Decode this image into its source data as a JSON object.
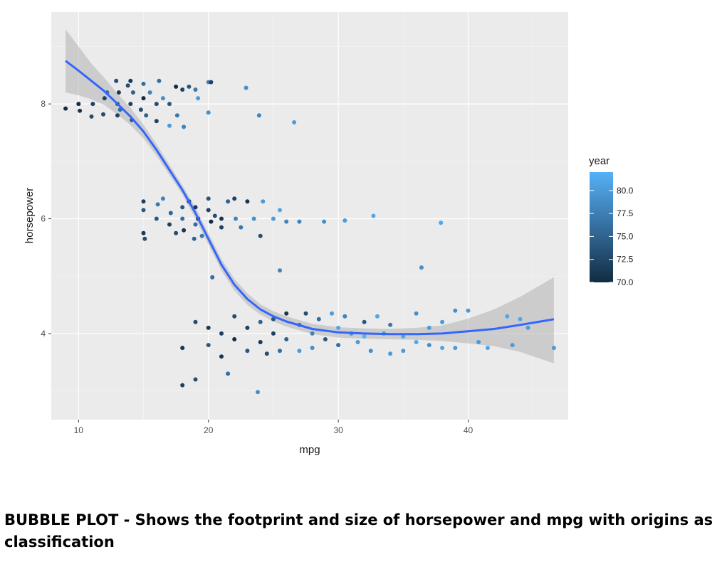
{
  "caption": "BUBBLE PLOT - Shows the footprint and size of horsepower and mpg with origins as classification",
  "chart_data": {
    "type": "scatter",
    "title": "",
    "xlabel": "mpg",
    "ylabel": "horsepower",
    "xlim": [
      7.9,
      47.7
    ],
    "ylim": [
      2.5,
      9.6
    ],
    "x_ticks": [
      10,
      20,
      30,
      40
    ],
    "y_ticks": [
      4,
      6,
      8
    ],
    "grid": true,
    "colors": {
      "panel": "#ebebeb",
      "grid": "#ffffff",
      "smooth_line": "#3366ff",
      "ribbon": "#b3b3b3",
      "low": "#132b43",
      "high": "#56b1f7"
    },
    "legend": {
      "title": "year",
      "placement": "right",
      "range": [
        70,
        82
      ],
      "labels": [
        "80.0",
        "77.5",
        "75.0",
        "72.5",
        "70.0"
      ],
      "values": [
        80,
        77.5,
        75,
        72.5,
        70
      ]
    },
    "smooth": {
      "x": [
        9,
        10,
        11,
        12,
        13,
        14,
        15,
        16,
        17,
        18,
        19,
        20,
        21,
        22,
        23,
        24,
        25,
        26,
        28,
        30,
        32,
        34,
        36,
        38,
        40,
        42,
        44,
        46.6
      ],
      "y": [
        8.75,
        8.58,
        8.4,
        8.22,
        8.0,
        7.78,
        7.52,
        7.2,
        6.85,
        6.5,
        6.1,
        5.65,
        5.2,
        4.85,
        4.6,
        4.42,
        4.3,
        4.21,
        4.08,
        4.02,
        4.0,
        3.99,
        3.99,
        4.0,
        4.04,
        4.08,
        4.15,
        4.25
      ],
      "lower": [
        8.2,
        8.15,
        8.08,
        7.98,
        7.82,
        7.63,
        7.4,
        7.1,
        6.76,
        6.42,
        6.0,
        5.55,
        5.1,
        4.75,
        4.5,
        4.33,
        4.21,
        4.12,
        3.99,
        3.93,
        3.91,
        3.9,
        3.89,
        3.87,
        3.83,
        3.78,
        3.68,
        3.48
      ],
      "upper": [
        9.3,
        9.0,
        8.7,
        8.45,
        8.18,
        7.93,
        7.64,
        7.3,
        6.94,
        6.58,
        6.2,
        5.75,
        5.3,
        4.95,
        4.7,
        4.51,
        4.39,
        4.3,
        4.17,
        4.11,
        4.09,
        4.08,
        4.1,
        4.14,
        4.26,
        4.42,
        4.64,
        4.98
      ]
    },
    "points": [
      {
        "x": 9.0,
        "y": 7.92,
        "year": 70
      },
      {
        "x": 10.0,
        "y": 8.0,
        "year": 70
      },
      {
        "x": 10.1,
        "y": 7.88,
        "year": 71
      },
      {
        "x": 11.0,
        "y": 7.78,
        "year": 73
      },
      {
        "x": 11.1,
        "y": 8.0,
        "year": 72
      },
      {
        "x": 11.9,
        "y": 7.82,
        "year": 73
      },
      {
        "x": 12.0,
        "y": 8.1,
        "year": 72
      },
      {
        "x": 12.2,
        "y": 8.2,
        "year": 76
      },
      {
        "x": 12.9,
        "y": 8.4,
        "year": 73
      },
      {
        "x": 13.0,
        "y": 8.0,
        "year": 74
      },
      {
        "x": 13.0,
        "y": 7.8,
        "year": 72
      },
      {
        "x": 13.1,
        "y": 8.2,
        "year": 71
      },
      {
        "x": 13.2,
        "y": 7.9,
        "year": 76
      },
      {
        "x": 13.8,
        "y": 8.32,
        "year": 73
      },
      {
        "x": 14.0,
        "y": 8.4,
        "year": 71
      },
      {
        "x": 14.0,
        "y": 8.0,
        "year": 72
      },
      {
        "x": 14.1,
        "y": 7.72,
        "year": 74
      },
      {
        "x": 14.2,
        "y": 8.2,
        "year": 75
      },
      {
        "x": 14.8,
        "y": 7.9,
        "year": 73
      },
      {
        "x": 15.0,
        "y": 8.1,
        "year": 70
      },
      {
        "x": 15.0,
        "y": 8.35,
        "year": 76
      },
      {
        "x": 15.2,
        "y": 7.8,
        "year": 75
      },
      {
        "x": 15.5,
        "y": 8.2,
        "year": 78
      },
      {
        "x": 16.0,
        "y": 8.0,
        "year": 73
      },
      {
        "x": 16.0,
        "y": 7.7,
        "year": 72
      },
      {
        "x": 16.2,
        "y": 8.4,
        "year": 76
      },
      {
        "x": 16.5,
        "y": 8.1,
        "year": 79
      },
      {
        "x": 17.0,
        "y": 8.0,
        "year": 74
      },
      {
        "x": 17.0,
        "y": 7.62,
        "year": 80
      },
      {
        "x": 17.5,
        "y": 8.3,
        "year": 70
      },
      {
        "x": 17.6,
        "y": 7.8,
        "year": 77
      },
      {
        "x": 18.0,
        "y": 8.25,
        "year": 72
      },
      {
        "x": 18.1,
        "y": 7.6,
        "year": 78
      },
      {
        "x": 18.5,
        "y": 8.3,
        "year": 74
      },
      {
        "x": 19.0,
        "y": 8.25,
        "year": 77
      },
      {
        "x": 19.2,
        "y": 8.1,
        "year": 80
      },
      {
        "x": 20.0,
        "y": 8.38,
        "year": 78
      },
      {
        "x": 20.2,
        "y": 8.38,
        "year": 72
      },
      {
        "x": 20.0,
        "y": 7.85,
        "year": 79
      },
      {
        "x": 22.9,
        "y": 8.28,
        "year": 79
      },
      {
        "x": 23.9,
        "y": 7.8,
        "year": 78
      },
      {
        "x": 26.6,
        "y": 7.68,
        "year": 80
      },
      {
        "x": 15.0,
        "y": 6.3,
        "year": 72
      },
      {
        "x": 15.0,
        "y": 6.15,
        "year": 74
      },
      {
        "x": 15.0,
        "y": 5.75,
        "year": 71
      },
      {
        "x": 15.1,
        "y": 5.65,
        "year": 73
      },
      {
        "x": 16.0,
        "y": 6.0,
        "year": 74
      },
      {
        "x": 16.1,
        "y": 6.25,
        "year": 77
      },
      {
        "x": 16.5,
        "y": 6.35,
        "year": 78
      },
      {
        "x": 17.0,
        "y": 5.9,
        "year": 72
      },
      {
        "x": 17.1,
        "y": 6.1,
        "year": 75
      },
      {
        "x": 17.5,
        "y": 5.75,
        "year": 73
      },
      {
        "x": 18.0,
        "y": 6.2,
        "year": 74
      },
      {
        "x": 18.0,
        "y": 6.0,
        "year": 76
      },
      {
        "x": 18.1,
        "y": 5.8,
        "year": 71
      },
      {
        "x": 18.5,
        "y": 6.3,
        "year": 73
      },
      {
        "x": 18.9,
        "y": 5.65,
        "year": 75
      },
      {
        "x": 19.0,
        "y": 6.2,
        "year": 71
      },
      {
        "x": 19.0,
        "y": 5.9,
        "year": 76
      },
      {
        "x": 19.2,
        "y": 6.0,
        "year": 72
      },
      {
        "x": 19.5,
        "y": 5.7,
        "year": 77
      },
      {
        "x": 20.0,
        "y": 6.35,
        "year": 74
      },
      {
        "x": 20.0,
        "y": 6.15,
        "year": 72
      },
      {
        "x": 20.2,
        "y": 5.95,
        "year": 70
      },
      {
        "x": 20.5,
        "y": 6.05,
        "year": 73
      },
      {
        "x": 21.0,
        "y": 6.0,
        "year": 71
      },
      {
        "x": 21.0,
        "y": 5.85,
        "year": 72
      },
      {
        "x": 21.5,
        "y": 6.3,
        "year": 75
      },
      {
        "x": 22.0,
        "y": 6.35,
        "year": 72
      },
      {
        "x": 22.1,
        "y": 6.0,
        "year": 78
      },
      {
        "x": 22.5,
        "y": 5.85,
        "year": 77
      },
      {
        "x": 23.0,
        "y": 6.3,
        "year": 71
      },
      {
        "x": 23.5,
        "y": 6.0,
        "year": 79
      },
      {
        "x": 24.0,
        "y": 5.7,
        "year": 73
      },
      {
        "x": 24.2,
        "y": 6.3,
        "year": 80
      },
      {
        "x": 25.0,
        "y": 6.0,
        "year": 80
      },
      {
        "x": 25.5,
        "y": 6.15,
        "year": 81
      },
      {
        "x": 26.0,
        "y": 5.95,
        "year": 78
      },
      {
        "x": 27.0,
        "y": 5.95,
        "year": 78
      },
      {
        "x": 28.9,
        "y": 5.95,
        "year": 79
      },
      {
        "x": 30.5,
        "y": 5.97,
        "year": 80
      },
      {
        "x": 32.7,
        "y": 6.05,
        "year": 81
      },
      {
        "x": 37.9,
        "y": 5.93,
        "year": 81
      },
      {
        "x": 20.3,
        "y": 4.98,
        "year": 76
      },
      {
        "x": 25.5,
        "y": 5.1,
        "year": 78
      },
      {
        "x": 36.4,
        "y": 5.15,
        "year": 79
      },
      {
        "x": 18.0,
        "y": 3.1,
        "year": 72
      },
      {
        "x": 19.0,
        "y": 3.2,
        "year": 73
      },
      {
        "x": 18.0,
        "y": 3.75,
        "year": 71
      },
      {
        "x": 19.0,
        "y": 4.2,
        "year": 73
      },
      {
        "x": 20.0,
        "y": 4.1,
        "year": 71
      },
      {
        "x": 20.0,
        "y": 3.8,
        "year": 74
      },
      {
        "x": 21.0,
        "y": 4.0,
        "year": 72
      },
      {
        "x": 21.0,
        "y": 3.6,
        "year": 71
      },
      {
        "x": 21.5,
        "y": 3.3,
        "year": 76
      },
      {
        "x": 22.0,
        "y": 4.3,
        "year": 73
      },
      {
        "x": 22.0,
        "y": 3.9,
        "year": 70
      },
      {
        "x": 23.0,
        "y": 4.1,
        "year": 72
      },
      {
        "x": 23.0,
        "y": 3.7,
        "year": 74
      },
      {
        "x": 23.8,
        "y": 2.98,
        "year": 79
      },
      {
        "x": 24.0,
        "y": 4.2,
        "year": 75
      },
      {
        "x": 24.0,
        "y": 3.85,
        "year": 71
      },
      {
        "x": 24.5,
        "y": 3.65,
        "year": 73
      },
      {
        "x": 25.0,
        "y": 4.25,
        "year": 74
      },
      {
        "x": 25.0,
        "y": 4.0,
        "year": 72
      },
      {
        "x": 25.5,
        "y": 3.7,
        "year": 76
      },
      {
        "x": 26.0,
        "y": 4.35,
        "year": 71
      },
      {
        "x": 26.0,
        "y": 3.9,
        "year": 75
      },
      {
        "x": 27.0,
        "y": 4.15,
        "year": 77
      },
      {
        "x": 27.0,
        "y": 3.7,
        "year": 80
      },
      {
        "x": 27.5,
        "y": 4.35,
        "year": 73
      },
      {
        "x": 28.0,
        "y": 4.0,
        "year": 78
      },
      {
        "x": 28.0,
        "y": 3.75,
        "year": 79
      },
      {
        "x": 28.5,
        "y": 4.25,
        "year": 76
      },
      {
        "x": 29.0,
        "y": 3.9,
        "year": 74
      },
      {
        "x": 29.5,
        "y": 4.35,
        "year": 80
      },
      {
        "x": 30.0,
        "y": 4.1,
        "year": 81
      },
      {
        "x": 30.0,
        "y": 3.8,
        "year": 76
      },
      {
        "x": 30.5,
        "y": 4.3,
        "year": 78
      },
      {
        "x": 31.0,
        "y": 4.0,
        "year": 79
      },
      {
        "x": 31.5,
        "y": 3.85,
        "year": 80
      },
      {
        "x": 32.0,
        "y": 4.2,
        "year": 74
      },
      {
        "x": 32.0,
        "y": 3.95,
        "year": 82
      },
      {
        "x": 32.5,
        "y": 3.7,
        "year": 79
      },
      {
        "x": 33.0,
        "y": 4.3,
        "year": 81
      },
      {
        "x": 33.5,
        "y": 4.0,
        "year": 80
      },
      {
        "x": 34.0,
        "y": 3.65,
        "year": 80
      },
      {
        "x": 34.0,
        "y": 4.15,
        "year": 77
      },
      {
        "x": 35.0,
        "y": 3.95,
        "year": 81
      },
      {
        "x": 35.0,
        "y": 3.7,
        "year": 80
      },
      {
        "x": 36.0,
        "y": 4.35,
        "year": 79
      },
      {
        "x": 36.0,
        "y": 3.85,
        "year": 81
      },
      {
        "x": 37.0,
        "y": 3.8,
        "year": 79
      },
      {
        "x": 37.0,
        "y": 4.1,
        "year": 80
      },
      {
        "x": 38.0,
        "y": 3.75,
        "year": 81
      },
      {
        "x": 38.0,
        "y": 4.2,
        "year": 80
      },
      {
        "x": 39.0,
        "y": 3.75,
        "year": 80
      },
      {
        "x": 39.0,
        "y": 4.4,
        "year": 79
      },
      {
        "x": 40.0,
        "y": 4.4,
        "year": 80
      },
      {
        "x": 40.8,
        "y": 3.85,
        "year": 80
      },
      {
        "x": 41.5,
        "y": 3.75,
        "year": 81
      },
      {
        "x": 43.0,
        "y": 4.3,
        "year": 81
      },
      {
        "x": 43.4,
        "y": 3.8,
        "year": 80
      },
      {
        "x": 44.0,
        "y": 4.25,
        "year": 81
      },
      {
        "x": 44.6,
        "y": 4.1,
        "year": 80
      },
      {
        "x": 46.6,
        "y": 3.75,
        "year": 80
      }
    ]
  }
}
